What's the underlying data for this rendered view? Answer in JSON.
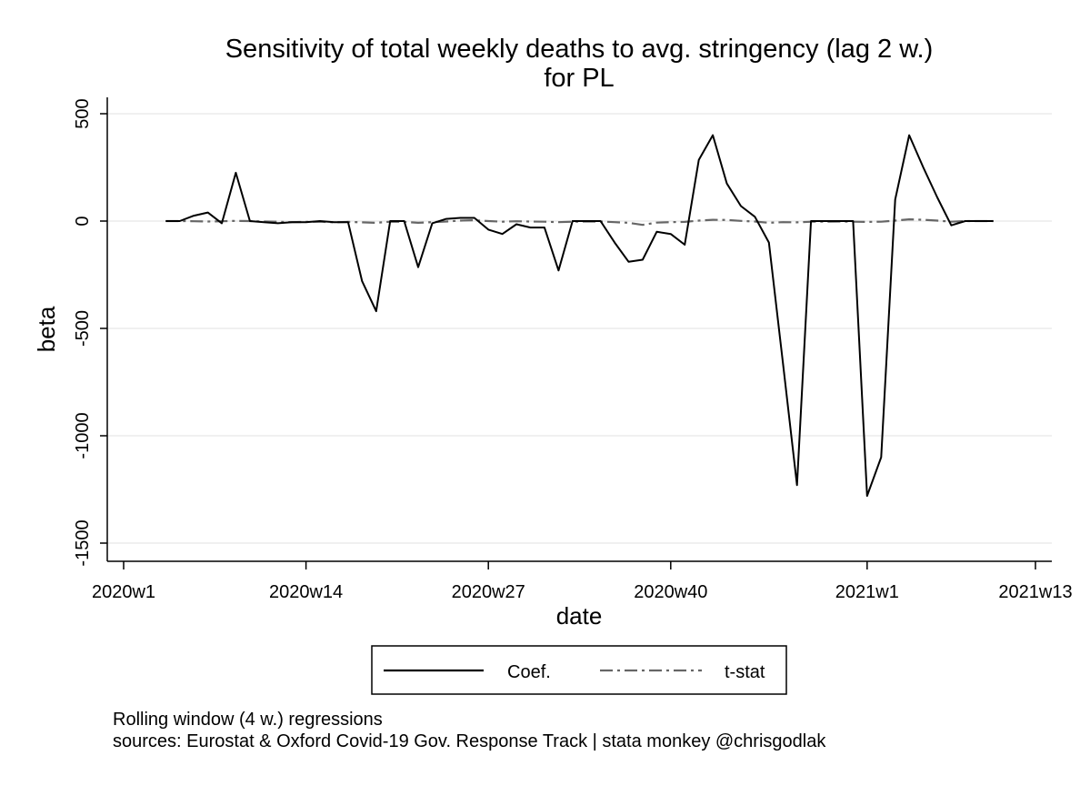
{
  "chart_data": {
    "type": "line",
    "title": "Sensitivity of total weekly deaths to avg. stringency (lag 2 w.)",
    "subtitle": "for PL",
    "xlabel": "date",
    "ylabel": "beta",
    "x_ticks": [
      "2020w1",
      "2020w14",
      "2020w27",
      "2020w40",
      "2021w1",
      "2021w13"
    ],
    "y_ticks": [
      500,
      0,
      -500,
      -1000,
      -1500
    ],
    "ylim": [
      -1500,
      550
    ],
    "xlim": [
      "2020w1",
      "2021w13"
    ],
    "grid": "horizontal",
    "legend": "bottom",
    "x": [
      "2020w4",
      "2020w5",
      "2020w6",
      "2020w7",
      "2020w8",
      "2020w9",
      "2020w10",
      "2020w11",
      "2020w12",
      "2020w13",
      "2020w14",
      "2020w15",
      "2020w16",
      "2020w17",
      "2020w18",
      "2020w19",
      "2020w20",
      "2020w21",
      "2020w22",
      "2020w23",
      "2020w24",
      "2020w25",
      "2020w26",
      "2020w27",
      "2020w28",
      "2020w29",
      "2020w30",
      "2020w31",
      "2020w32",
      "2020w33",
      "2020w34",
      "2020w35",
      "2020w36",
      "2020w37",
      "2020w38",
      "2020w39",
      "2020w40",
      "2020w41",
      "2020w42",
      "2020w43",
      "2020w44",
      "2020w45",
      "2020w46",
      "2020w47",
      "2020w48",
      "2020w49",
      "2020w50",
      "2020w51",
      "2020w52",
      "2020w53",
      "2021w1",
      "2021w2",
      "2021w3",
      "2021w4",
      "2021w5",
      "2021w6",
      "2021w7",
      "2021w8",
      "2021w9",
      "2021w10"
    ],
    "series": [
      {
        "name": "Coef.",
        "style": "solid",
        "color": "#000000",
        "values": [
          0,
          0,
          25,
          40,
          -10,
          225,
          0,
          -5,
          -10,
          -5,
          -5,
          0,
          -5,
          -5,
          -280,
          -420,
          0,
          0,
          -215,
          -10,
          10,
          15,
          15,
          -40,
          -60,
          -15,
          -30,
          -30,
          -230,
          0,
          0,
          0,
          -100,
          -190,
          -180,
          -50,
          -60,
          -110,
          285,
          400,
          175,
          70,
          20,
          -100,
          -660,
          -1230,
          0,
          0,
          0,
          0,
          -1280,
          -1100,
          100,
          400,
          250,
          110,
          -20,
          0,
          0,
          0
        ]
      },
      {
        "name": "t-stat",
        "style": "dash-dot",
        "color": "#666666",
        "values": [
          0,
          0,
          -1,
          -2,
          -1,
          1,
          0,
          -2,
          -3,
          -5,
          -4,
          -3,
          -6,
          -4,
          -6,
          -8,
          -3,
          -4,
          -8,
          -5,
          -2,
          2,
          4,
          0,
          -3,
          -1,
          -2,
          -3,
          -5,
          -3,
          -2,
          -2,
          -5,
          -8,
          -18,
          -7,
          -5,
          -4,
          2,
          6,
          5,
          1,
          -2,
          -8,
          -5,
          -6,
          -3,
          -3,
          -2,
          -3,
          -4,
          -3,
          2,
          8,
          6,
          2,
          -3,
          0,
          0,
          0
        ]
      }
    ]
  },
  "notes": {
    "line1": "Rolling window (4 w.) regressions",
    "line2": "sources: Eurostat & Oxford Covid-19 Gov. Response Track | stata monkey @chrisgodlak"
  }
}
